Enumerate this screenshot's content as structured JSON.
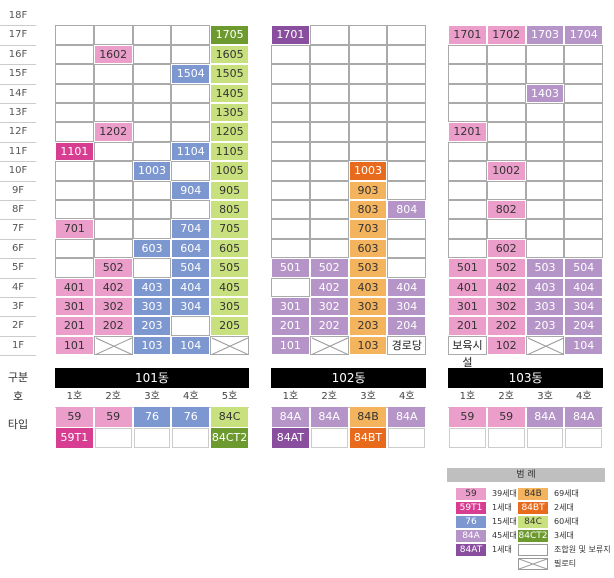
{
  "colors": {
    "59": "#ec9ecb",
    "59T1": "#d73d91",
    "76": "#7d97d1",
    "84C": "#c9e07e",
    "84CT2": "#6d9a2e",
    "84A": "#b594c8",
    "84AT": "#8a4e9e",
    "84B": "#f4b35d",
    "84BT": "#e86a1c",
    "empty": "#ffffff"
  },
  "floors": [
    "18F",
    "17F",
    "16F",
    "15F",
    "14F",
    "13F",
    "12F",
    "11F",
    "10F",
    "9F",
    "8F",
    "7F",
    "6F",
    "5F",
    "4F",
    "3F",
    "2F",
    "1F"
  ],
  "buildings": [
    {
      "name": "101동",
      "cols": [
        "1호",
        "2호",
        "3호",
        "4호",
        "5호"
      ],
      "types": [
        "59",
        "59",
        "76",
        "76",
        "84C"
      ],
      "special_types": [
        "59T1",
        "",
        "",
        "",
        "84CT2"
      ],
      "units": {
        "17F": [
          "",
          "",
          "",
          "",
          "1705:84CT2"
        ],
        "16F": [
          "",
          "1602:59",
          "",
          "",
          "1605:84C"
        ],
        "15F": [
          "",
          "",
          "",
          "1504:76",
          "1505:84C"
        ],
        "14F": [
          "",
          "",
          "",
          "",
          "1405:84C"
        ],
        "13F": [
          "",
          "",
          "",
          "",
          "1305:84C"
        ],
        "12F": [
          "",
          "1202:59",
          "",
          "",
          "1205:84C"
        ],
        "11F": [
          "1101:59T1",
          "",
          "",
          "1104:76",
          "1105:84C"
        ],
        "10F": [
          "",
          "",
          "1003:76",
          "",
          "1005:84C"
        ],
        "9F": [
          "",
          "",
          "",
          "904:76",
          "905:84C"
        ],
        "8F": [
          "",
          "",
          "",
          "",
          "805:84C"
        ],
        "7F": [
          "701:59",
          "",
          "",
          "704:76",
          "705:84C"
        ],
        "6F": [
          "",
          "",
          "603:76",
          "604:76",
          "605:84C"
        ],
        "5F": [
          "",
          "502:59",
          "",
          "504:76",
          "505:84C"
        ],
        "4F": [
          "401:59",
          "402:59",
          "403:76",
          "404:76",
          "405:84C"
        ],
        "3F": [
          "301:59",
          "302:59",
          "303:76",
          "304:76",
          "305:84C"
        ],
        "2F": [
          "201:59",
          "202:59",
          "203:76",
          "",
          "205:84C"
        ],
        "1F": [
          "101:59",
          "X",
          "103:76",
          "104:76",
          "X"
        ]
      }
    },
    {
      "name": "102동",
      "cols": [
        "1호",
        "2호",
        "3호",
        "4호"
      ],
      "types": [
        "84A",
        "84A",
        "84B",
        "84A"
      ],
      "special_types": [
        "84AT",
        "",
        "84BT",
        ""
      ],
      "units": {
        "17F": [
          "1701:84AT",
          "",
          "",
          ""
        ],
        "16F": [
          "",
          "",
          "",
          ""
        ],
        "15F": [
          "",
          "",
          "",
          ""
        ],
        "14F": [
          "",
          "",
          "",
          ""
        ],
        "13F": [
          "",
          "",
          "",
          ""
        ],
        "12F": [
          "",
          "",
          "",
          ""
        ],
        "11F": [
          "",
          "",
          "",
          ""
        ],
        "10F": [
          "",
          "",
          "1003:84BT",
          ""
        ],
        "9F": [
          "",
          "",
          "903:84B",
          ""
        ],
        "8F": [
          "",
          "",
          "803:84B",
          "804:84A"
        ],
        "7F": [
          "",
          "",
          "703:84B",
          ""
        ],
        "6F": [
          "",
          "",
          "603:84B",
          ""
        ],
        "5F": [
          "501:84A",
          "502:84A",
          "503:84B",
          ""
        ],
        "4F": [
          "",
          "402:84A",
          "403:84B",
          "404:84A"
        ],
        "3F": [
          "301:84A",
          "302:84A",
          "303:84B",
          "304:84A"
        ],
        "2F": [
          "201:84A",
          "202:84A",
          "203:84B",
          "204:84A"
        ],
        "1F": [
          "101:84A",
          "X",
          "103:84B",
          "경로당:T"
        ]
      }
    },
    {
      "name": "103동",
      "cols": [
        "1호",
        "2호",
        "3호",
        "4호"
      ],
      "types": [
        "59",
        "59",
        "84A",
        "84A"
      ],
      "special_types": [
        "",
        "",
        "",
        ""
      ],
      "units": {
        "17F": [
          "1701:59",
          "1702:59",
          "1703:84A",
          "1704:84A"
        ],
        "16F": [
          "",
          "",
          "",
          ""
        ],
        "15F": [
          "",
          "",
          "",
          ""
        ],
        "14F": [
          "",
          "",
          "1403:84A",
          ""
        ],
        "13F": [
          "",
          "",
          "",
          ""
        ],
        "12F": [
          "1201:59",
          "",
          "",
          ""
        ],
        "11F": [
          "",
          "",
          "",
          ""
        ],
        "10F": [
          "",
          "1002:59",
          "",
          ""
        ],
        "9F": [
          "",
          "",
          "",
          ""
        ],
        "8F": [
          "",
          "802:59",
          "",
          ""
        ],
        "7F": [
          "",
          "",
          "",
          ""
        ],
        "6F": [
          "",
          "602:59",
          "",
          ""
        ],
        "5F": [
          "501:59",
          "502:59",
          "503:84A",
          "504:84A"
        ],
        "4F": [
          "401:59",
          "402:59",
          "403:84A",
          "404:84A"
        ],
        "3F": [
          "301:59",
          "302:59",
          "303:84A",
          "304:84A"
        ],
        "2F": [
          "201:59",
          "202:59",
          "203:84A",
          "204:84A"
        ],
        "1F": [
          "보육시설:T",
          "102:59",
          "X",
          "104:84A"
        ]
      }
    }
  ],
  "labels": {
    "row_gubun": "구분",
    "row_ho": "호",
    "row_type": "타입"
  },
  "legend": {
    "title": "범 례",
    "items": [
      {
        "swatch": "59",
        "color_key": "59",
        "text": "39세대"
      },
      {
        "swatch": "84B",
        "color_key": "84B",
        "text": "69세대"
      },
      {
        "swatch": "59T1",
        "color_key": "59T1",
        "text": "1세대"
      },
      {
        "swatch": "84BT",
        "color_key": "84BT",
        "text": "2세대"
      },
      {
        "swatch": "76",
        "color_key": "76",
        "text": "15세대"
      },
      {
        "swatch": "84C",
        "color_key": "84C",
        "text": "60세대"
      },
      {
        "swatch": "84A",
        "color_key": "84A",
        "text": "45세대"
      },
      {
        "swatch": "84CT2",
        "color_key": "84CT2",
        "text": "3세대"
      },
      {
        "swatch": "84AT",
        "color_key": "84AT",
        "text": "1세대"
      },
      {
        "swatch": "",
        "color_key": "empty",
        "text": "조합원 및 보류지"
      },
      {
        "swatch": "",
        "color_key": "pilotis",
        "text": "필로티"
      }
    ]
  }
}
